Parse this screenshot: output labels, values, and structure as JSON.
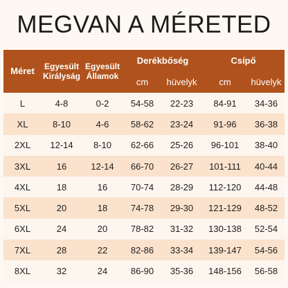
{
  "title": "MEGVAN A MÉRETED",
  "table": {
    "header": {
      "size": "Méret",
      "uk": [
        "Egyesült",
        "Királyság"
      ],
      "us": [
        "Egyesült",
        "Államok"
      ],
      "waist": "Derékbőség",
      "hip": "Csípő",
      "units": [
        "cm",
        "hüvelyk",
        "cm",
        "hüvelyk"
      ]
    },
    "rows": [
      [
        "L",
        "4-8",
        "0-2",
        "54-58",
        "22-23",
        "84-91",
        "34-36"
      ],
      [
        "XL",
        "8-10",
        "4-6",
        "58-62",
        "23-24",
        "91-96",
        "36-38"
      ],
      [
        "2XL",
        "12-14",
        "8-10",
        "62-66",
        "25-26",
        "96-101",
        "38-40"
      ],
      [
        "3XL",
        "16",
        "12-14",
        "66-70",
        "26-27",
        "101-111",
        "40-44"
      ],
      [
        "4XL",
        "18",
        "16",
        "70-74",
        "28-29",
        "112-120",
        "44-48"
      ],
      [
        "5XL",
        "20",
        "18",
        "74-78",
        "29-30",
        "121-129",
        "48-52"
      ],
      [
        "6XL",
        "24",
        "20",
        "78-82",
        "31-32",
        "130-138",
        "52-54"
      ],
      [
        "7XL",
        "28",
        "22",
        "82-86",
        "33-34",
        "139-147",
        "54-56"
      ],
      [
        "8XL",
        "32",
        "24",
        "86-90",
        "35-36",
        "148-156",
        "56-58"
      ]
    ]
  }
}
